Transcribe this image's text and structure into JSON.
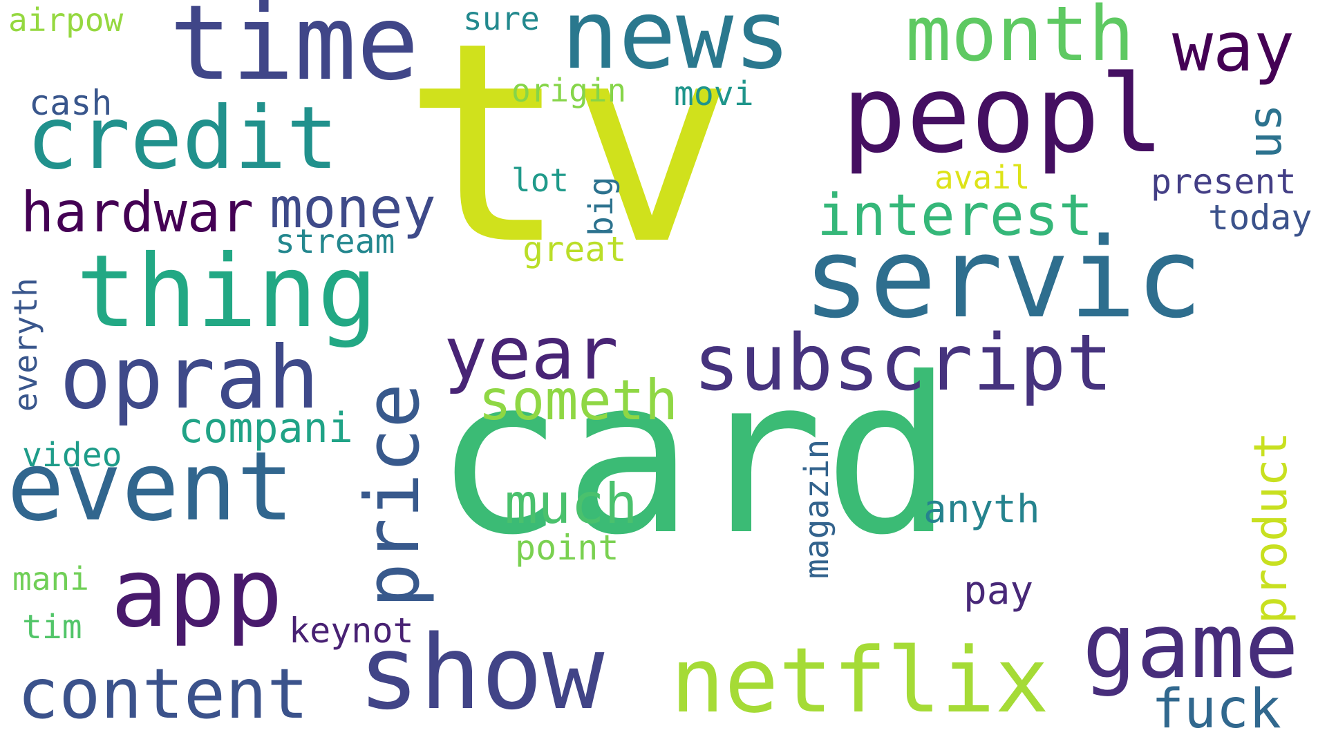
{
  "words": {
    "tv": {
      "text": "tv",
      "color": "#d0e11c"
    },
    "card": {
      "text": "card",
      "color": "#3bbb75"
    },
    "servic": {
      "text": "servic",
      "color": "#2e6e8e"
    },
    "peopl": {
      "text": "peopl",
      "color": "#440f61"
    },
    "time": {
      "text": "time",
      "color": "#404688"
    },
    "news": {
      "text": "news",
      "color": "#2a788e"
    },
    "credit": {
      "text": "credit",
      "color": "#21918c"
    },
    "thing": {
      "text": "thing",
      "color": "#22a884"
    },
    "subscript": {
      "text": "subscript",
      "color": "#46337e"
    },
    "event": {
      "text": "event",
      "color": "#31668e"
    },
    "netflix": {
      "text": "netflix",
      "color": "#a5db36"
    },
    "show": {
      "text": "show",
      "color": "#414487"
    },
    "oprah": {
      "text": "oprah",
      "color": "#3e4989"
    },
    "app": {
      "text": "app",
      "color": "#481a6c"
    },
    "game": {
      "text": "game",
      "color": "#472d7b"
    },
    "content": {
      "text": "content",
      "color": "#3b528b"
    },
    "month": {
      "text": "month",
      "color": "#5ec962"
    },
    "year": {
      "text": "year",
      "color": "#482475"
    },
    "price": {
      "text": "price",
      "color": "#38598c"
    },
    "way": {
      "text": "way",
      "color": "#440154"
    },
    "hardwar": {
      "text": "hardwar",
      "color": "#440154"
    },
    "money": {
      "text": "money",
      "color": "#3e4a89"
    },
    "interest": {
      "text": "interest",
      "color": "#35b779"
    },
    "someth": {
      "text": "someth",
      "color": "#8fd744"
    },
    "much": {
      "text": "much",
      "color": "#4ac16d"
    },
    "product": {
      "text": "product",
      "color": "#c8e020"
    },
    "fuck": {
      "text": "fuck",
      "color": "#31688e"
    },
    "compani": {
      "text": "compani",
      "color": "#20a386"
    },
    "us": {
      "text": "us",
      "color": "#2c728e"
    },
    "magazin": {
      "text": "magazin",
      "color": "#33638d"
    },
    "anyth": {
      "text": "anyth",
      "color": "#25838e"
    },
    "present": {
      "text": "present",
      "color": "#433e85"
    },
    "today": {
      "text": "today",
      "color": "#3b528b"
    },
    "pay": {
      "text": "pay",
      "color": "#482878"
    },
    "keynot": {
      "text": "keynot",
      "color": "#482173"
    },
    "point": {
      "text": "point",
      "color": "#7ad151"
    },
    "great": {
      "text": "great",
      "color": "#bade28"
    },
    "big": {
      "text": "big",
      "color": "#2c728e"
    },
    "lot": {
      "text": "lot",
      "color": "#1f9a8a"
    },
    "stream": {
      "text": "stream",
      "color": "#24878e"
    },
    "avail": {
      "text": "avail",
      "color": "#dde318"
    },
    "origin": {
      "text": "origin",
      "color": "#86d549"
    },
    "movi": {
      "text": "movi",
      "color": "#1f958b"
    },
    "sure": {
      "text": "sure",
      "color": "#23898e"
    },
    "cash": {
      "text": "cash",
      "color": "#39568c"
    },
    "airpow": {
      "text": "airpow",
      "color": "#95d840"
    },
    "video": {
      "text": "video",
      "color": "#1e9c89"
    },
    "mani": {
      "text": "mani",
      "color": "#70cf57"
    },
    "tim": {
      "text": "tim",
      "color": "#52c569"
    },
    "everyth": {
      "text": "everyth",
      "color": "#39568c"
    }
  }
}
